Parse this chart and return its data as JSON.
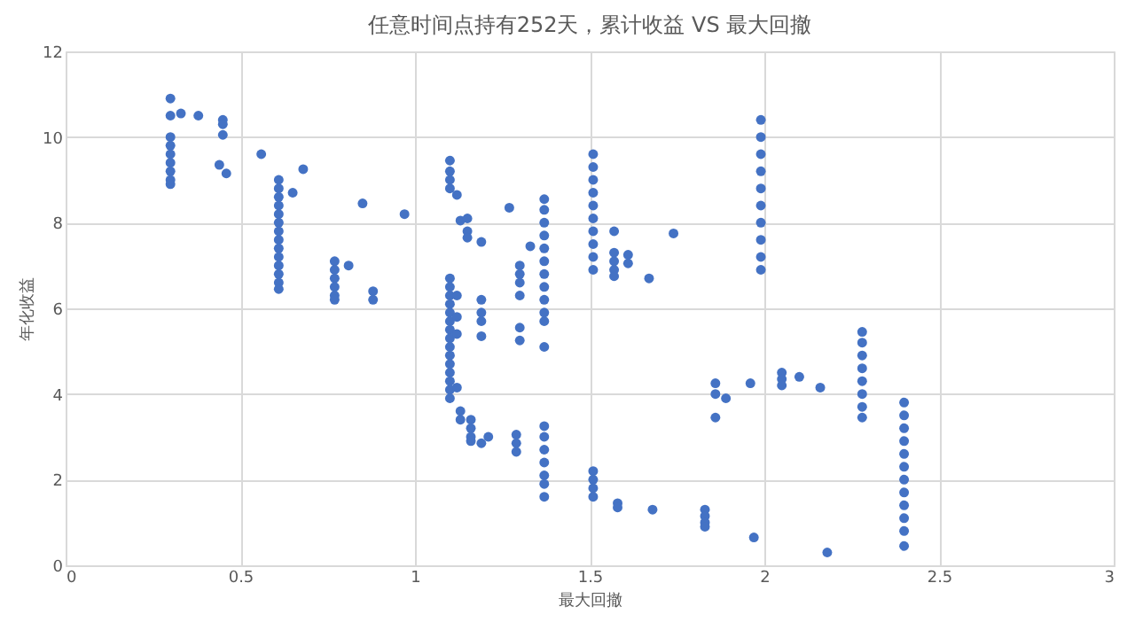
{
  "chart_data": {
    "type": "scatter",
    "title": "任意时间点持有252天，累计收益 VS 最大回撤",
    "xlabel": "最大回撤",
    "ylabel": "年化收益",
    "xlim": [
      0,
      3
    ],
    "xticks": [
      0,
      0.5,
      1,
      1.5,
      2,
      2.5,
      3
    ],
    "ylim": [
      0,
      12
    ],
    "yticks": [
      0,
      2,
      4,
      6,
      8,
      10,
      12
    ],
    "grid": true,
    "marker": "circle",
    "series": [
      {
        "color": "#4472c4",
        "x": [
          0.3,
          0.3,
          0.3,
          0.3,
          0.3,
          0.3,
          0.3,
          0.3,
          0.3,
          0.33,
          0.38,
          0.45,
          0.45,
          0.45,
          0.44,
          0.46,
          0.56,
          0.61,
          0.61,
          0.61,
          0.61,
          0.61,
          0.61,
          0.61,
          0.61,
          0.61,
          0.61,
          0.61,
          0.61,
          0.61,
          0.61,
          0.65,
          0.68,
          0.77,
          0.77,
          0.77,
          0.77,
          0.77,
          0.77,
          0.81,
          0.85,
          0.88,
          0.88,
          0.97,
          1.1,
          1.1,
          1.1,
          1.1,
          1.1,
          1.1,
          1.1,
          1.1,
          1.1,
          1.1,
          1.1,
          1.1,
          1.1,
          1.1,
          1.1,
          1.1,
          1.1,
          1.1,
          1.1,
          1.12,
          1.13,
          1.15,
          1.15,
          1.15,
          1.19,
          1.12,
          1.12,
          1.12,
          1.12,
          1.13,
          1.13,
          1.16,
          1.16,
          1.16,
          1.16,
          1.19,
          1.21,
          1.19,
          1.19,
          1.19,
          1.19,
          1.27,
          1.33,
          1.3,
          1.3,
          1.3,
          1.3,
          1.3,
          1.3,
          1.29,
          1.29,
          1.29,
          1.37,
          1.37,
          1.37,
          1.37,
          1.37,
          1.37,
          1.37,
          1.37,
          1.37,
          1.37,
          1.37,
          1.37,
          1.37,
          1.37,
          1.37,
          1.37,
          1.37,
          1.37,
          1.37,
          1.51,
          1.51,
          1.51,
          1.51,
          1.51,
          1.51,
          1.51,
          1.51,
          1.51,
          1.51,
          1.51,
          1.51,
          1.51,
          1.51,
          1.58,
          1.58,
          1.68,
          1.83,
          1.83,
          1.83,
          1.83,
          1.97,
          1.57,
          1.57,
          1.57,
          1.57,
          1.57,
          1.61,
          1.61,
          1.67,
          1.74,
          1.99,
          1.99,
          1.99,
          1.99,
          1.99,
          1.99,
          1.99,
          1.99,
          1.99,
          1.99,
          1.86,
          1.86,
          1.86,
          1.89,
          1.96,
          2.05,
          2.05,
          2.05,
          2.1,
          2.16,
          2.18,
          2.28,
          2.28,
          2.28,
          2.28,
          2.28,
          2.28,
          2.28,
          2.28,
          2.4,
          2.4,
          2.4,
          2.4,
          2.4,
          2.4,
          2.4,
          2.4,
          2.4,
          2.4,
          2.4,
          2.4
        ],
        "values": [
          10.9,
          10.5,
          10.0,
          9.8,
          9.6,
          9.4,
          9.2,
          9.0,
          8.9,
          10.55,
          10.5,
          10.4,
          10.3,
          10.05,
          9.35,
          9.15,
          9.6,
          9.0,
          8.8,
          8.6,
          8.4,
          8.2,
          8.0,
          7.8,
          7.6,
          7.4,
          7.2,
          7.0,
          6.8,
          6.6,
          6.45,
          8.7,
          9.25,
          7.1,
          6.9,
          6.7,
          6.5,
          6.3,
          6.2,
          7.0,
          8.45,
          6.4,
          6.2,
          8.2,
          9.45,
          9.2,
          9.0,
          8.8,
          6.7,
          6.5,
          6.3,
          6.1,
          5.9,
          5.7,
          5.5,
          5.3,
          5.1,
          4.9,
          4.7,
          4.5,
          4.3,
          4.1,
          3.9,
          8.65,
          8.05,
          8.1,
          7.8,
          7.65,
          7.55,
          6.3,
          5.8,
          5.4,
          4.15,
          3.6,
          3.4,
          3.4,
          3.2,
          3.0,
          2.9,
          2.85,
          3.0,
          6.2,
          5.9,
          5.7,
          5.35,
          8.35,
          7.45,
          7.0,
          6.8,
          6.6,
          6.3,
          5.55,
          5.25,
          3.05,
          2.85,
          2.65,
          8.55,
          8.3,
          8.0,
          7.7,
          7.4,
          7.1,
          6.8,
          6.5,
          6.2,
          5.9,
          5.7,
          5.1,
          3.25,
          3.0,
          2.7,
          2.4,
          2.1,
          1.9,
          1.6,
          9.6,
          9.3,
          9.0,
          8.7,
          8.4,
          8.1,
          7.8,
          7.5,
          7.2,
          6.9,
          2.2,
          2.0,
          1.8,
          1.6,
          1.45,
          1.35,
          1.3,
          1.3,
          1.15,
          1.0,
          0.9,
          0.65,
          7.8,
          7.3,
          7.1,
          6.9,
          6.75,
          7.25,
          7.05,
          6.7,
          7.75,
          10.4,
          10.0,
          9.6,
          9.2,
          8.8,
          8.4,
          8.0,
          7.6,
          7.2,
          6.9,
          4.25,
          4.0,
          3.45,
          3.9,
          4.25,
          4.5,
          4.35,
          4.2,
          4.4,
          4.15,
          0.3,
          5.45,
          5.2,
          4.9,
          4.6,
          4.3,
          4.0,
          3.7,
          3.45,
          3.8,
          3.5,
          3.2,
          2.9,
          2.6,
          2.3,
          2.0,
          1.7,
          1.4,
          1.1,
          0.8,
          0.45
        ]
      }
    ]
  }
}
